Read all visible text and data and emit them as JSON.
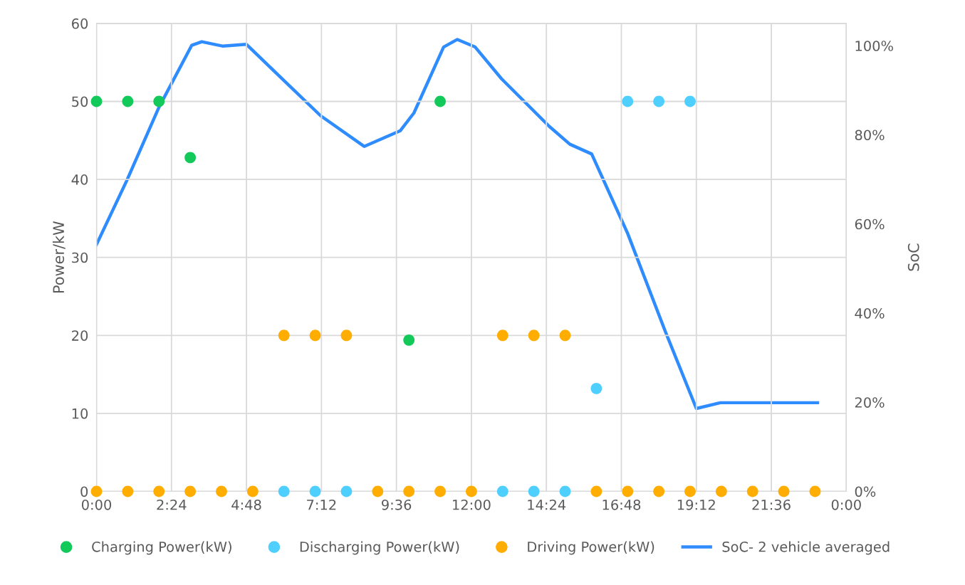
{
  "chart_data": {
    "type": "scatter",
    "ylabel": "Power/kW",
    "y2label": "SoC",
    "x": [
      0,
      1,
      2,
      3,
      4,
      5,
      6,
      7,
      8,
      9,
      10,
      11,
      12,
      13,
      14,
      15,
      16,
      17,
      18,
      19,
      20,
      21,
      22,
      23
    ],
    "xlim": [
      0,
      24
    ],
    "xticks": [
      {
        "value": 0,
        "label": "0:00"
      },
      {
        "value": 2.4,
        "label": "2:24"
      },
      {
        "value": 4.8,
        "label": "4:48"
      },
      {
        "value": 7.2,
        "label": "7:12"
      },
      {
        "value": 9.6,
        "label": "9:36"
      },
      {
        "value": 12,
        "label": "12:00"
      },
      {
        "value": 14.4,
        "label": "14:24"
      },
      {
        "value": 16.8,
        "label": "16:48"
      },
      {
        "value": 19.2,
        "label": "19:12"
      },
      {
        "value": 21.6,
        "label": "21:36"
      },
      {
        "value": 24,
        "label": "0:00"
      }
    ],
    "ylim": [
      0,
      60
    ],
    "yticks": [
      0,
      10,
      20,
      30,
      40,
      50,
      60
    ],
    "y2lim": [
      0,
      105
    ],
    "y2ticks": [
      {
        "value": 0,
        "label": "0%"
      },
      {
        "value": 20,
        "label": "20%"
      },
      {
        "value": 40,
        "label": "40%"
      },
      {
        "value": 60,
        "label": "60%"
      },
      {
        "value": 80,
        "label": "80%"
      },
      {
        "value": 100,
        "label": "100%"
      }
    ],
    "grid": true,
    "legend": "bottom",
    "marker": "circle",
    "series": [
      {
        "name": "Charging Power(kW)",
        "color": "#12c95a",
        "values": [
          50,
          50,
          50,
          42.8,
          null,
          null,
          null,
          null,
          null,
          null,
          19.4,
          50,
          null,
          null,
          null,
          null,
          null,
          null,
          null,
          null,
          null,
          null,
          null,
          null
        ]
      },
      {
        "name": "Discharging Power(kW)",
        "color": "#4fcffd",
        "values": [
          null,
          null,
          null,
          null,
          null,
          null,
          0,
          0,
          0,
          null,
          null,
          null,
          null,
          0,
          0,
          0,
          13.2,
          50,
          50,
          50,
          null,
          null,
          null,
          null
        ]
      },
      {
        "name": "Driving Power(kW)",
        "color": "#ffad00",
        "values": [
          0,
          0,
          0,
          0,
          0,
          0,
          20,
          20,
          20,
          0,
          0,
          0,
          0,
          20,
          20,
          20,
          0,
          0,
          0,
          0,
          0,
          0,
          0,
          0
        ]
      },
      {
        "name": "SoC- 2 vehicle averaged",
        "type": "line",
        "axis": "y2",
        "color": "#2e8cff",
        "marker": "none",
        "x": [
          0,
          0.96,
          2,
          3.05,
          3.37,
          4.05,
          4.8,
          5.94,
          7.17,
          8.57,
          9.72,
          10.16,
          11.11,
          11.55,
          12.12,
          12.96,
          14.49,
          15.15,
          15.85,
          17,
          18.2,
          19.2,
          19.97,
          23.08
        ],
        "values": [
          55.4,
          69.6,
          86.2,
          100.1,
          100.9,
          99.9,
          100.3,
          92.6,
          84.3,
          77.4,
          80.9,
          84.9,
          99.7,
          101.4,
          99.7,
          92.6,
          81.9,
          77.9,
          75.7,
          57.9,
          36.0,
          18.6,
          19.9,
          19.9
        ]
      }
    ]
  }
}
